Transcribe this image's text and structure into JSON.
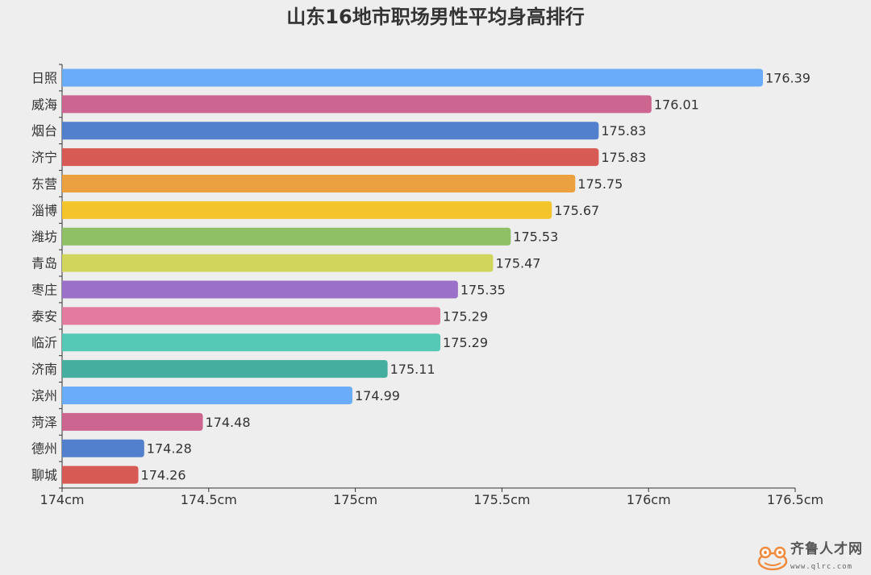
{
  "chart_data": {
    "type": "bar",
    "orientation": "horizontal",
    "title": "山东16地市职场男性平均身高排行",
    "categories": [
      "日照",
      "威海",
      "烟台",
      "济宁",
      "东营",
      "淄博",
      "潍坊",
      "青岛",
      "枣庄",
      "泰安",
      "临沂",
      "济南",
      "滨州",
      "菏泽",
      "德州",
      "聊城"
    ],
    "values": [
      176.39,
      176.01,
      175.83,
      175.83,
      175.75,
      175.67,
      175.53,
      175.47,
      175.35,
      175.29,
      175.29,
      175.11,
      174.99,
      174.48,
      174.28,
      174.26
    ],
    "data_labels": [
      "176.39",
      "176.01",
      "175.83",
      "175.83",
      "175.75",
      "175.67",
      "175.53",
      "175.47",
      "175.35",
      "175.29",
      "175.29",
      "175.11",
      "174.99",
      "174.48",
      "174.28",
      "174.26"
    ],
    "xlim": [
      174,
      176.5
    ],
    "xticks": [
      174,
      174.5,
      175,
      175.5,
      176,
      176.5
    ],
    "xtick_labels": [
      "174cm",
      "174.5cm",
      "175cm",
      "175.5cm",
      "176cm",
      "176.5cm"
    ],
    "grid": false,
    "colors": [
      "#6aacf7",
      "#cc6691",
      "#5280cd",
      "#d85a55",
      "#eba13f",
      "#f4c42c",
      "#8fc065",
      "#d1d55c",
      "#9b70c8",
      "#e27b9f",
      "#55c9b6",
      "#46ae9f"
    ]
  },
  "watermark": {
    "name": "齐鲁人才网",
    "url": "www.qlrc.com",
    "icon": "frog-logo-icon"
  }
}
